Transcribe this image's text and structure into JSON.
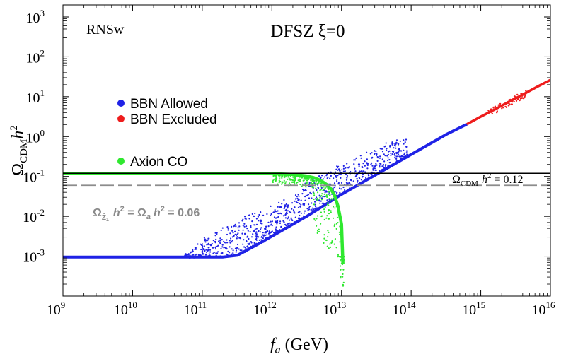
{
  "chart_data": {
    "type": "scatter",
    "title": "DFSZ ξ=0",
    "corner_label": "RNSw",
    "xlabel": {
      "base": "f",
      "sub": "a",
      "unit": " (GeV)"
    },
    "ylabel": {
      "base": "Ω",
      "sub": "CDM",
      "tail": "h",
      "sup": "2"
    },
    "xscale": "log",
    "yscale": "log",
    "xlim": [
      1000000000.0,
      1e+16
    ],
    "ylim": [
      0.0001,
      2000
    ],
    "xtick_exponents": [
      9,
      10,
      11,
      12,
      13,
      14,
      15,
      16
    ],
    "ytick_exponents": [
      -3,
      -2,
      -1,
      0,
      1,
      2,
      3
    ],
    "tick_base": "10",
    "colors": {
      "blue": "#1f22e6",
      "red": "#ee1c1c",
      "green": "#2fe82f",
      "line": "#000000",
      "dashed": "#8c8c8c"
    },
    "legend": [
      {
        "label": "BBN Allowed",
        "color": "#1f22e6"
      },
      {
        "label": "BBN Excluded",
        "color": "#ee1c1c"
      },
      {
        "label": "Axion CO",
        "color": "#2fe82f"
      }
    ],
    "hline_solid": {
      "value": 0.12,
      "label": {
        "omega": "Ω",
        "sub": "CDM",
        "h": "h",
        "sup": "2",
        "rest": " = 0.12"
      }
    },
    "hline_dashed": {
      "value": 0.06,
      "label": {
        "omega1": "Ω",
        "sub1": "Z̃",
        "sub1b": "1",
        "h1": "h",
        "sup1": "2",
        "eq1": " = ",
        "omega2": "Ω",
        "sub2": "a",
        "h2": "h",
        "sup2": "2",
        "rest": " = 0.06"
      }
    },
    "series": [
      {
        "name": "BBN Allowed (lower envelope)",
        "color": "#1f22e6",
        "log_x": [
          9.0,
          11.0,
          11.3,
          11.5,
          11.8,
          12.0,
          12.5,
          13.0,
          13.5,
          14.0,
          14.5,
          14.8
        ],
        "log_y": [
          -3.02,
          -3.02,
          -3.02,
          -2.98,
          -2.7,
          -2.5,
          -2.0,
          -1.45,
          -0.95,
          -0.45,
          0.05,
          0.31
        ]
      },
      {
        "name": "BBN Allowed (upper scatter)",
        "color": "#1f22e6",
        "log_x": [
          10.8,
          11.0,
          11.3,
          11.6,
          12.0,
          12.3,
          12.6,
          12.9,
          13.2,
          13.5,
          13.8
        ],
        "log_y": [
          -2.95,
          -2.6,
          -2.25,
          -2.0,
          -1.75,
          -1.4,
          -1.05,
          -0.8,
          -0.55,
          -0.3,
          -0.05
        ]
      },
      {
        "name": "BBN Excluded",
        "color": "#ee1c1c",
        "log_x": [
          14.8,
          15.0,
          15.2,
          15.4,
          15.6,
          15.8,
          16.0
        ],
        "log_y": [
          0.31,
          0.5,
          0.68,
          0.87,
          1.05,
          1.24,
          1.42
        ]
      },
      {
        "name": "Axion CO",
        "color": "#2fe82f",
        "log_x": [
          9.0,
          11.0,
          12.0,
          12.3,
          12.5,
          12.6,
          12.7,
          12.8,
          12.85,
          12.9,
          12.95,
          13.0,
          13.02
        ],
        "log_y": [
          -0.92,
          -0.92,
          -0.93,
          -0.95,
          -0.99,
          -1.03,
          -1.1,
          -1.22,
          -1.32,
          -1.48,
          -1.75,
          -2.2,
          -3.2
        ]
      }
    ]
  }
}
